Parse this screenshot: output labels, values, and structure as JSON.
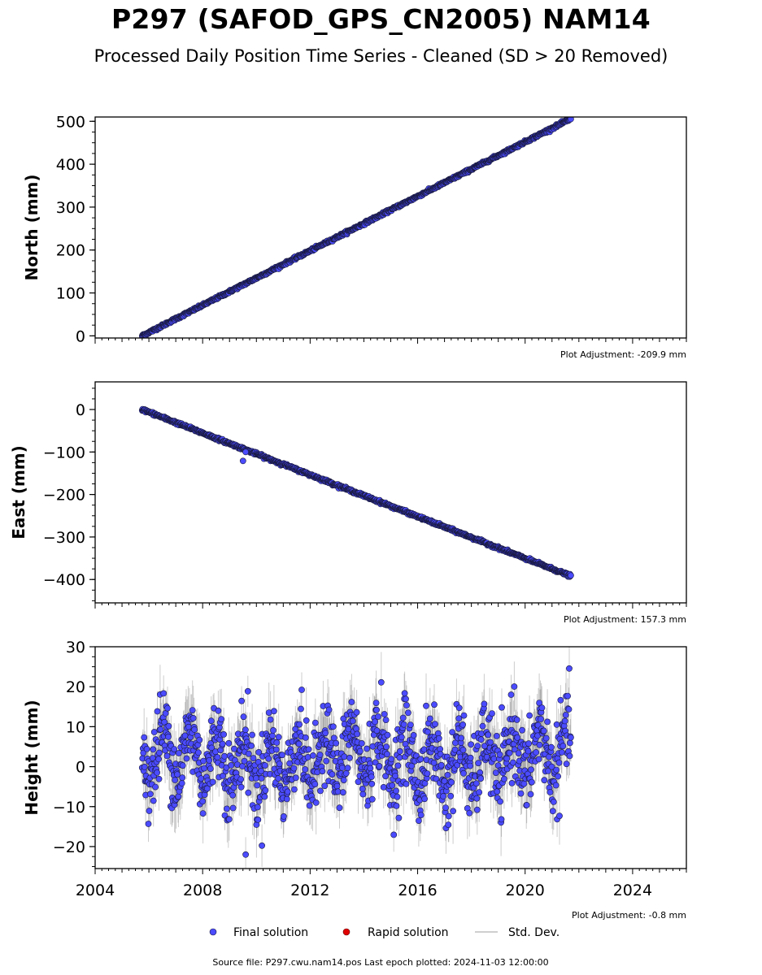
{
  "title": "P297 (SAFOD_GPS_CN2005) NAM14",
  "subtitle": "Processed Daily Position Time Series - Cleaned (SD > 20 Removed)",
  "colors": {
    "final_solution": "#4b4bff",
    "marker_edge": "#1a1a40",
    "rapid_solution": "#e00000",
    "std_dev": "#bfbfbf",
    "axes": "#000000"
  },
  "chart_data": [
    {
      "type": "scatter",
      "name": "north",
      "ylabel": "North (mm)",
      "plot_adjustment": "Plot Adjustment: -209.9 mm",
      "xlim": [
        2004,
        2026
      ],
      "ylim": [
        -5,
        510
      ],
      "yticks": [
        0,
        100,
        200,
        300,
        400,
        500
      ],
      "ytick_labels": [
        "0",
        "100",
        "200",
        "300",
        "400",
        "500"
      ],
      "x_start": 2005.75,
      "x_end": 2021.7,
      "y_start": 0,
      "y_end": 506,
      "trend_model": "linear",
      "scatter_noise_mm": 1.5,
      "stddev_mm": 2
    },
    {
      "type": "scatter",
      "name": "east",
      "ylabel": "East (mm)",
      "plot_adjustment": "Plot Adjustment: 157.3 mm",
      "xlim": [
        2004,
        2026
      ],
      "ylim": [
        -455,
        65
      ],
      "yticks": [
        0,
        -100,
        -200,
        -300,
        -400
      ],
      "ytick_labels": [
        "0",
        "−100",
        "−200",
        "−300",
        "−400"
      ],
      "x_start": 2005.75,
      "x_end": 2021.7,
      "y_start": 0,
      "y_end": -392,
      "trend_model": "linear",
      "scatter_noise_mm": 1.5,
      "stddev_mm": 2,
      "outliers": [
        {
          "x": 2009.5,
          "y": -121
        },
        {
          "x": 2009.6,
          "y": -100
        }
      ]
    },
    {
      "type": "scatter",
      "name": "height",
      "ylabel": "Height (mm)",
      "plot_adjustment": "Plot Adjustment: -0.8 mm",
      "xlim": [
        2004,
        2026
      ],
      "ylim": [
        -25.5,
        30
      ],
      "yticks": [
        -20,
        -10,
        0,
        10,
        20,
        30
      ],
      "ytick_labels": [
        "−20",
        "−10",
        "0",
        "10",
        "20",
        "30"
      ],
      "xticks": [
        2004,
        2008,
        2012,
        2016,
        2020,
        2024
      ],
      "xtick_labels": [
        "2004",
        "2008",
        "2012",
        "2016",
        "2020",
        "2024"
      ],
      "x_start": 2005.75,
      "x_end": 2021.7,
      "y_mean": 2,
      "seasonal_amplitude_mm": 6,
      "scatter_noise_mm": 5,
      "stddev_mm": 6,
      "outliers": [
        {
          "x": 2009.6,
          "y": -22
        }
      ]
    }
  ],
  "legend": {
    "final_label": "Final solution",
    "rapid_label": "Rapid solution",
    "std_label": "Std. Dev."
  },
  "footer": "Source file: P297.cwu.nam14.pos  Last epoch plotted: 2024-11-03 12:00:00"
}
